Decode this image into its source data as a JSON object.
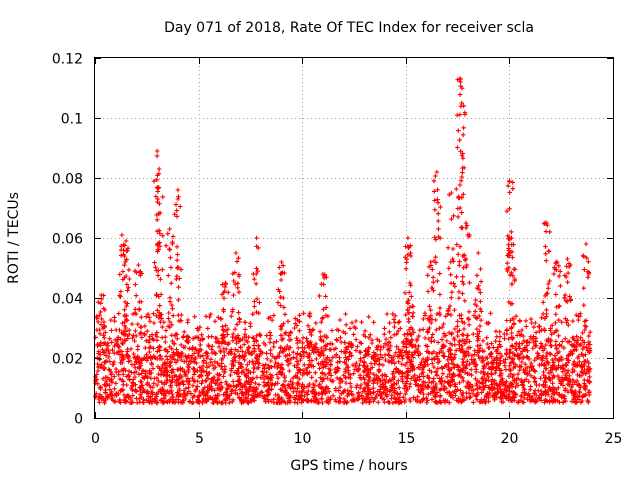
{
  "chart_data": {
    "type": "scatter",
    "title": "Day 071 of 2018, Rate Of TEC Index for receiver scla",
    "xlabel": "GPS time / hours",
    "ylabel": "ROTI / TECUs",
    "xlim": [
      0,
      25
    ],
    "ylim": [
      0,
      0.12
    ],
    "xticks": [
      0,
      5,
      10,
      15,
      20,
      25
    ],
    "yticks": [
      0,
      0.02,
      0.04,
      0.06,
      0.08,
      0.1,
      0.12
    ],
    "xtick_labels": [
      "0",
      "5",
      "10",
      "15",
      "20",
      "25"
    ],
    "ytick_labels": [
      "0",
      "0.02",
      "0.04",
      "0.06",
      "0.08",
      "0.1",
      "0.12"
    ],
    "grid": true,
    "marker": "plus",
    "series": [
      {
        "name": "ROTI",
        "color": "#ff0000",
        "baseline_range": [
          0.005,
          0.03
        ],
        "peaks": [
          {
            "x": 0.3,
            "y": 0.041
          },
          {
            "x": 1.3,
            "y": 0.061
          },
          {
            "x": 1.5,
            "y": 0.059
          },
          {
            "x": 2.1,
            "y": 0.051
          },
          {
            "x": 3.0,
            "y": 0.089
          },
          {
            "x": 3.1,
            "y": 0.083
          },
          {
            "x": 3.6,
            "y": 0.063
          },
          {
            "x": 4.0,
            "y": 0.076
          },
          {
            "x": 6.3,
            "y": 0.045
          },
          {
            "x": 6.8,
            "y": 0.055
          },
          {
            "x": 7.8,
            "y": 0.06
          },
          {
            "x": 9.0,
            "y": 0.052
          },
          {
            "x": 11.0,
            "y": 0.048
          },
          {
            "x": 15.1,
            "y": 0.06
          },
          {
            "x": 15.2,
            "y": 0.045
          },
          {
            "x": 16.2,
            "y": 0.052
          },
          {
            "x": 16.5,
            "y": 0.082
          },
          {
            "x": 17.2,
            "y": 0.075
          },
          {
            "x": 17.6,
            "y": 0.113
          },
          {
            "x": 17.7,
            "y": 0.105
          },
          {
            "x": 17.9,
            "y": 0.065
          },
          {
            "x": 18.5,
            "y": 0.055
          },
          {
            "x": 20.0,
            "y": 0.079
          },
          {
            "x": 20.1,
            "y": 0.06
          },
          {
            "x": 21.8,
            "y": 0.065
          },
          {
            "x": 22.3,
            "y": 0.052
          },
          {
            "x": 22.8,
            "y": 0.053
          },
          {
            "x": 23.7,
            "y": 0.058
          }
        ],
        "x_range": [
          0,
          23.9
        ]
      }
    ]
  }
}
